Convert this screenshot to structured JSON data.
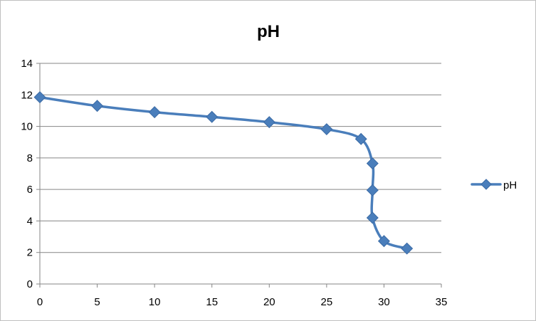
{
  "chart_data": {
    "type": "scatter",
    "title": "pH",
    "xlabel": "",
    "ylabel": "",
    "xlim": [
      0,
      35
    ],
    "ylim": [
      0,
      14
    ],
    "xticks": [
      "0",
      "5",
      "10",
      "15",
      "20",
      "25",
      "30",
      "35"
    ],
    "yticks": [
      "0",
      "2",
      "4",
      "6",
      "8",
      "10",
      "12",
      "14"
    ],
    "grid": "horizontal",
    "legend_position": "right",
    "line_style": "smooth-with-diamond-markers",
    "color": "#4a7ebb",
    "series": [
      {
        "name": "pH",
        "x": [
          0,
          5,
          10,
          15,
          20,
          25,
          28,
          29,
          29,
          29,
          30,
          32
        ],
        "y": [
          11.85,
          11.3,
          10.9,
          10.6,
          10.27,
          9.82,
          9.2,
          7.65,
          5.95,
          4.2,
          2.72,
          2.25
        ]
      }
    ]
  }
}
